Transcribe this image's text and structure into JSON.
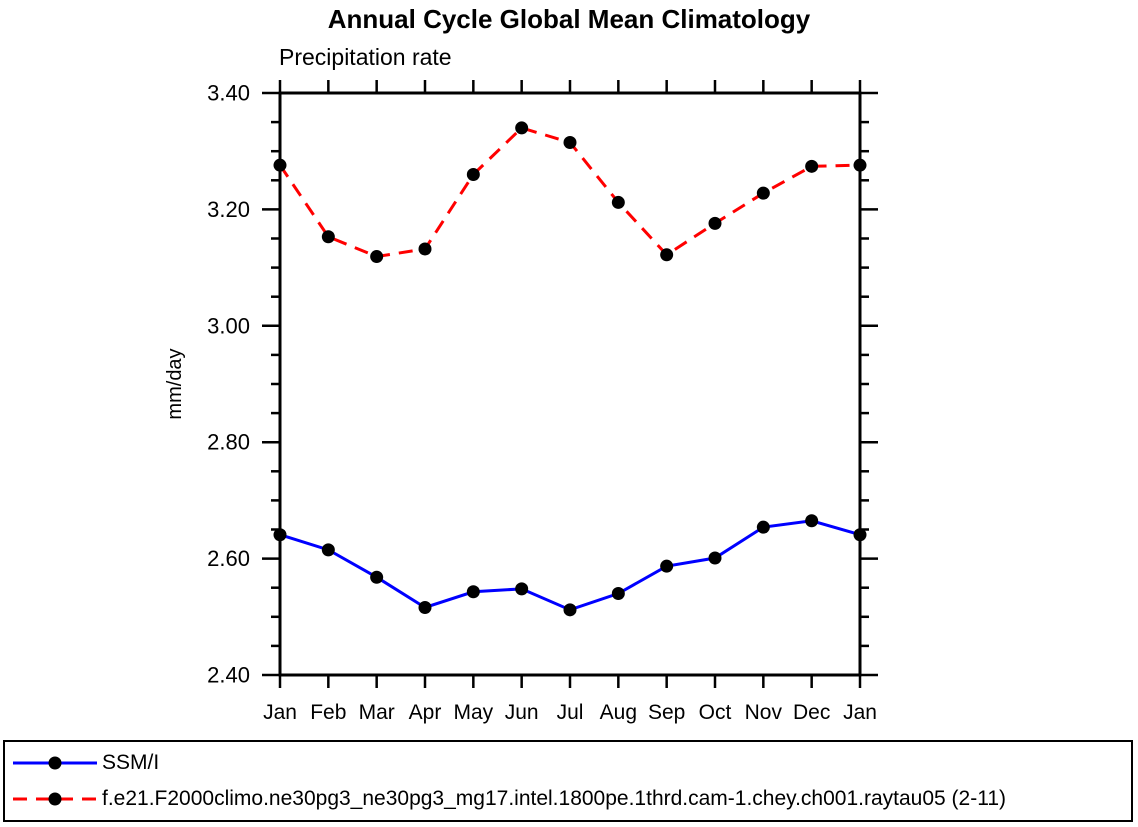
{
  "page": {
    "background": "#ffffff",
    "text_color": "#000000"
  },
  "chart_data": {
    "type": "line",
    "title": "Annual Cycle Global Mean Climatology",
    "subtitle": "Precipitation rate",
    "ylabel": "mm/day",
    "xlabel": "",
    "categories": [
      "Jan",
      "Feb",
      "Mar",
      "Apr",
      "May",
      "Jun",
      "Jul",
      "Aug",
      "Sep",
      "Oct",
      "Nov",
      "Dec",
      "Jan"
    ],
    "ylim": [
      2.4,
      3.4
    ],
    "ytick_interval": 0.2,
    "yminor_interval": 0.05,
    "ytick_labels": [
      "2.40",
      "2.60",
      "2.80",
      "3.00",
      "3.20",
      "3.40"
    ],
    "grid": false,
    "frame": "box",
    "tick_direction": "out",
    "axis_color": "#000000",
    "marker": "filled-circle",
    "marker_color": "#000000",
    "legend_position": "bottom-box",
    "series": [
      {
        "name": "SSM/I",
        "color": "#0000ff",
        "style": "solid",
        "values": [
          2.641,
          2.615,
          2.568,
          2.516,
          2.543,
          2.548,
          2.512,
          2.54,
          2.587,
          2.601,
          2.654,
          2.665,
          2.641
        ]
      },
      {
        "name": "f.e21.F2000climo.ne30pg3_ne30pg3_mg17.intel.1800pe.1thrd.cam-1.chey.ch001.raytau05 (2-11)",
        "color": "#ff0000",
        "style": "dashed",
        "values": [
          3.276,
          3.153,
          3.119,
          3.132,
          3.26,
          3.34,
          3.315,
          3.212,
          3.122,
          3.176,
          3.228,
          3.274,
          3.276
        ]
      }
    ]
  }
}
